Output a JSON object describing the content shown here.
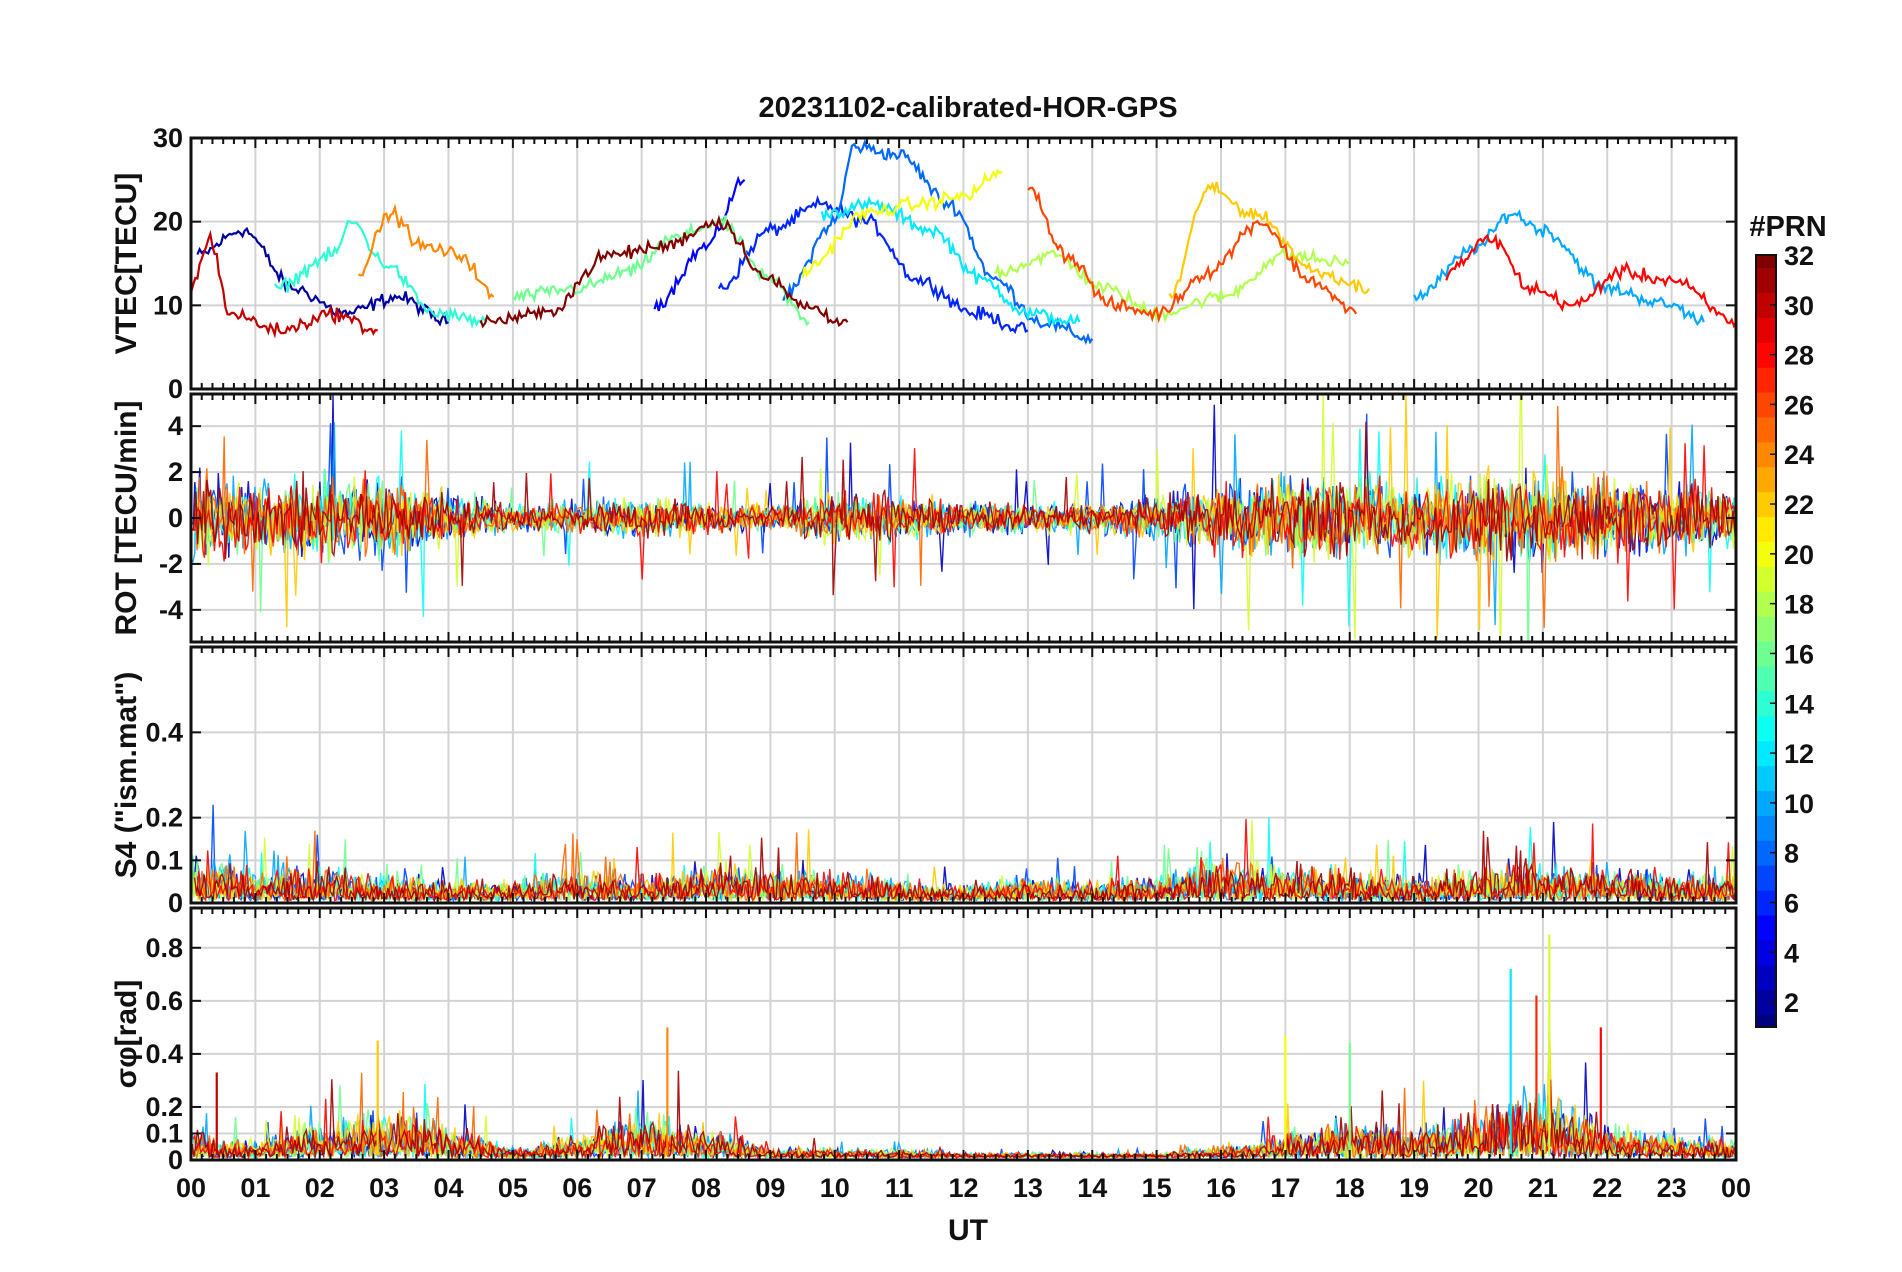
{
  "chart_data": {
    "type": "line",
    "title": "20231102-calibrated-HOR-GPS",
    "xlabel": "UT",
    "x_range_hours": [
      0,
      24
    ],
    "x_tick_labels": [
      "00",
      "01",
      "02",
      "03",
      "04",
      "05",
      "06",
      "07",
      "08",
      "09",
      "10",
      "11",
      "12",
      "13",
      "14",
      "15",
      "16",
      "17",
      "18",
      "19",
      "20",
      "21",
      "22",
      "23",
      "00"
    ],
    "colorbar": {
      "label": "#PRN",
      "range": [
        1,
        32
      ],
      "tick_values": [
        2,
        4,
        6,
        8,
        10,
        12,
        14,
        16,
        18,
        20,
        22,
        24,
        26,
        28,
        30,
        32
      ],
      "tick_labels": [
        "2",
        "4",
        "6",
        "8",
        "10",
        "12",
        "14",
        "16",
        "18",
        "20",
        "22",
        "24",
        "26",
        "28",
        "30",
        "32"
      ],
      "colormap": "jet"
    },
    "panels": [
      {
        "id": "vtec",
        "ylabel": "VTEC[TECU]",
        "ylim": [
          0,
          30
        ],
        "yticks": [
          0,
          10,
          20,
          30
        ],
        "ytick_labels": [
          "0",
          "10",
          "20",
          "30"
        ],
        "series": [
          {
            "name": "PRN 2",
            "prn": 2,
            "values": [
              [
                0.1,
                16
              ],
              [
                0.8,
                19
              ],
              [
                1.6,
                12
              ],
              [
                2.4,
                9
              ],
              [
                3.2,
                11
              ],
              [
                4.0,
                8
              ]
            ]
          },
          {
            "name": "PRN 5",
            "prn": 5,
            "values": [
              [
                7.2,
                10
              ],
              [
                8.0,
                17
              ],
              [
                8.6,
                25
              ]
            ]
          },
          {
            "name": "PRN 6",
            "prn": 6,
            "values": [
              [
                8.2,
                12
              ],
              [
                9.0,
                19
              ],
              [
                9.8,
                22
              ],
              [
                10.5,
                20
              ],
              [
                11.3,
                13
              ],
              [
                12.2,
                9
              ],
              [
                13.0,
                7
              ]
            ]
          },
          {
            "name": "PRN 8",
            "prn": 8,
            "values": [
              [
                9.2,
                11
              ],
              [
                10.0,
                20
              ],
              [
                10.3,
                29
              ],
              [
                11.0,
                28
              ],
              [
                11.8,
                22
              ],
              [
                12.5,
                13
              ],
              [
                13.2,
                8
              ],
              [
                14.0,
                6
              ]
            ]
          },
          {
            "name": "PRN 10",
            "prn": 10,
            "values": [
              [
                19.0,
                11
              ],
              [
                20.0,
                17
              ],
              [
                20.5,
                21
              ],
              [
                21.0,
                19
              ],
              [
                22.0,
                12
              ],
              [
                23.0,
                10
              ],
              [
                23.5,
                8
              ]
            ]
          },
          {
            "name": "PRN 12",
            "prn": 12,
            "values": [
              [
                9.8,
                21
              ],
              [
                10.6,
                22
              ],
              [
                11.5,
                19
              ],
              [
                12.3,
                13
              ],
              [
                13.0,
                9
              ],
              [
                13.8,
                8
              ]
            ]
          },
          {
            "name": "PRN 14",
            "prn": 14,
            "values": [
              [
                1.3,
                12
              ],
              [
                2.2,
                16
              ],
              [
                2.5,
                20
              ],
              [
                3.0,
                15
              ],
              [
                3.8,
                9
              ],
              [
                4.6,
                8
              ]
            ]
          },
          {
            "name": "PRN 16",
            "prn": 16,
            "values": [
              [
                5.0,
                11
              ],
              [
                6.0,
                12
              ],
              [
                6.8,
                14
              ],
              [
                7.5,
                18
              ],
              [
                8.2,
                20
              ],
              [
                9.0,
                13
              ],
              [
                9.6,
                8
              ]
            ]
          },
          {
            "name": "PRN 18",
            "prn": 18,
            "values": [
              [
                12.5,
                14
              ],
              [
                13.4,
                16
              ],
              [
                14.2,
                12
              ],
              [
                15.0,
                9
              ],
              [
                16.0,
                11
              ],
              [
                17.0,
                16
              ],
              [
                18.0,
                15
              ]
            ]
          },
          {
            "name": "PRN 20",
            "prn": 20,
            "values": [
              [
                9.5,
                14
              ],
              [
                10.5,
                21
              ],
              [
                11.2,
                22
              ],
              [
                12.0,
                23
              ],
              [
                12.6,
                26
              ]
            ]
          },
          {
            "name": "PRN 22",
            "prn": 22,
            "values": [
              [
                15.2,
                11
              ],
              [
                15.8,
                24
              ],
              [
                16.5,
                21
              ],
              [
                17.5,
                14
              ],
              [
                18.3,
                12
              ]
            ]
          },
          {
            "name": "PRN 24",
            "prn": 24,
            "values": [
              [
                2.6,
                14
              ],
              [
                3.1,
                21
              ],
              [
                3.6,
                17
              ],
              [
                4.2,
                16
              ],
              [
                4.7,
                11
              ]
            ]
          },
          {
            "name": "PRN 26",
            "prn": 26,
            "values": [
              [
                13.0,
                24
              ],
              [
                13.6,
                16
              ],
              [
                14.3,
                10
              ],
              [
                15.0,
                9
              ],
              [
                15.8,
                14
              ],
              [
                16.6,
                20
              ],
              [
                17.4,
                13
              ],
              [
                18.1,
                9
              ]
            ]
          },
          {
            "name": "PRN 28",
            "prn": 28,
            "values": [
              [
                19.5,
                14
              ],
              [
                20.2,
                18
              ],
              [
                20.8,
                12
              ],
              [
                21.5,
                10
              ],
              [
                22.2,
                14
              ],
              [
                23.0,
                13
              ],
              [
                24.0,
                8
              ]
            ]
          },
          {
            "name": "PRN 30",
            "prn": 30,
            "values": [
              [
                0.0,
                12
              ],
              [
                0.3,
                18
              ],
              [
                0.6,
                9
              ],
              [
                1.4,
                7
              ],
              [
                2.2,
                9
              ],
              [
                2.9,
                7
              ]
            ]
          },
          {
            "name": "PRN 32",
            "prn": 32,
            "values": [
              [
                4.5,
                8
              ],
              [
                5.5,
                9
              ],
              [
                6.5,
                16
              ],
              [
                7.3,
                17
              ],
              [
                8.2,
                20
              ],
              [
                9.0,
                13
              ],
              [
                9.5,
                10
              ],
              [
                10.2,
                8
              ]
            ]
          }
        ]
      },
      {
        "id": "rot",
        "ylabel": "ROT [TECU/min]",
        "ylim": [
          -5.4,
          5.4
        ],
        "yticks": [
          -4,
          -2,
          0,
          2,
          4
        ],
        "ytick_labels": [
          "-4",
          "-2",
          "0",
          "2",
          "4"
        ],
        "noise_envelope": {
          "hours": [
            0,
            1,
            2,
            3,
            4,
            5,
            6,
            7,
            8,
            9,
            10,
            11,
            12,
            13,
            14,
            15,
            16,
            17,
            18,
            19,
            20,
            21,
            22,
            23,
            24
          ],
          "amplitude": [
            3.0,
            2.0,
            2.6,
            2.6,
            1.8,
            0.8,
            1.0,
            1.3,
            1.0,
            0.8,
            1.6,
            1.4,
            1.0,
            1.0,
            1.0,
            1.4,
            2.2,
            2.6,
            2.6,
            2.4,
            2.6,
            3.2,
            2.6,
            2.2,
            2.0
          ]
        }
      },
      {
        "id": "s4",
        "ylabel": "S4 (\"ism.mat\")",
        "ylim": [
          0,
          0.6
        ],
        "yticks": [
          0,
          0.1,
          0.2,
          0.4
        ],
        "ytick_labels": [
          "0",
          "0.1",
          "0.2",
          "0.4"
        ],
        "noise_envelope": {
          "hours": [
            0,
            1,
            2,
            3,
            4,
            5,
            6,
            7,
            8,
            9,
            10,
            11,
            12,
            13,
            14,
            15,
            16,
            17,
            18,
            19,
            20,
            21,
            22,
            23,
            24
          ],
          "amplitude": [
            0.22,
            0.12,
            0.14,
            0.1,
            0.08,
            0.09,
            0.12,
            0.1,
            0.14,
            0.13,
            0.12,
            0.08,
            0.06,
            0.1,
            0.08,
            0.09,
            0.16,
            0.14,
            0.13,
            0.1,
            0.12,
            0.15,
            0.13,
            0.12,
            0.1
          ]
        }
      },
      {
        "id": "sigma_phi",
        "ylabel": "σφ[rad]",
        "ylim": [
          0,
          0.95
        ],
        "yticks": [
          0,
          0.1,
          0.2,
          0.4,
          0.6,
          0.8
        ],
        "ytick_labels": [
          "0",
          "0.1",
          "0.2",
          "0.4",
          "0.6",
          "0.8"
        ],
        "noise_envelope": {
          "hours": [
            0,
            1,
            2,
            3,
            4,
            5,
            6,
            7,
            8,
            9,
            10,
            11,
            12,
            13,
            14,
            15,
            16,
            17,
            18,
            19,
            20,
            21,
            22,
            23,
            24
          ],
          "amplitude": [
            0.2,
            0.1,
            0.22,
            0.3,
            0.22,
            0.06,
            0.14,
            0.3,
            0.2,
            0.06,
            0.06,
            0.05,
            0.03,
            0.03,
            0.03,
            0.03,
            0.06,
            0.15,
            0.25,
            0.2,
            0.3,
            0.45,
            0.2,
            0.15,
            0.12
          ]
        },
        "spikes": [
          [
            0.4,
            0.33
          ],
          [
            2.9,
            0.45
          ],
          [
            7.4,
            0.5
          ],
          [
            17.0,
            0.47
          ],
          [
            18.0,
            0.44
          ],
          [
            20.5,
            0.72
          ],
          [
            21.1,
            0.85
          ],
          [
            21.9,
            0.5
          ],
          [
            20.9,
            0.62
          ]
        ]
      }
    ]
  }
}
